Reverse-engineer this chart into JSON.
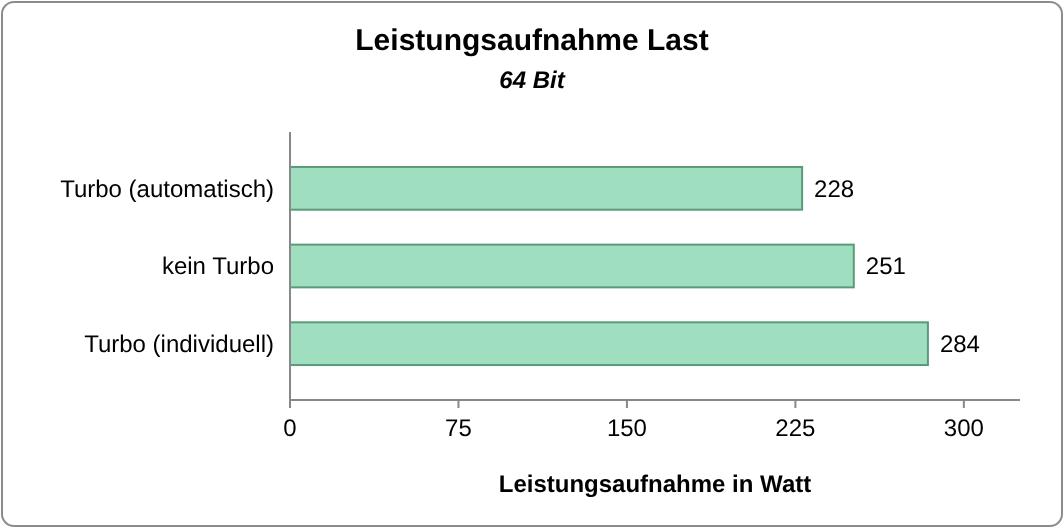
{
  "chart_data": {
    "type": "bar",
    "orientation": "horizontal",
    "title": "Leistungsaufnahme Last",
    "subtitle": "64 Bit",
    "xlabel": "Leistungsaufnahme in Watt",
    "categories": [
      "Turbo (automatisch)",
      "kein Turbo",
      "Turbo (individuell)"
    ],
    "values": [
      228,
      251,
      284
    ],
    "color": "#9fdfbf",
    "data_labels": true,
    "xlim": [
      0,
      325
    ],
    "xticks": [
      0,
      75,
      150,
      225,
      300
    ],
    "grid": false
  }
}
